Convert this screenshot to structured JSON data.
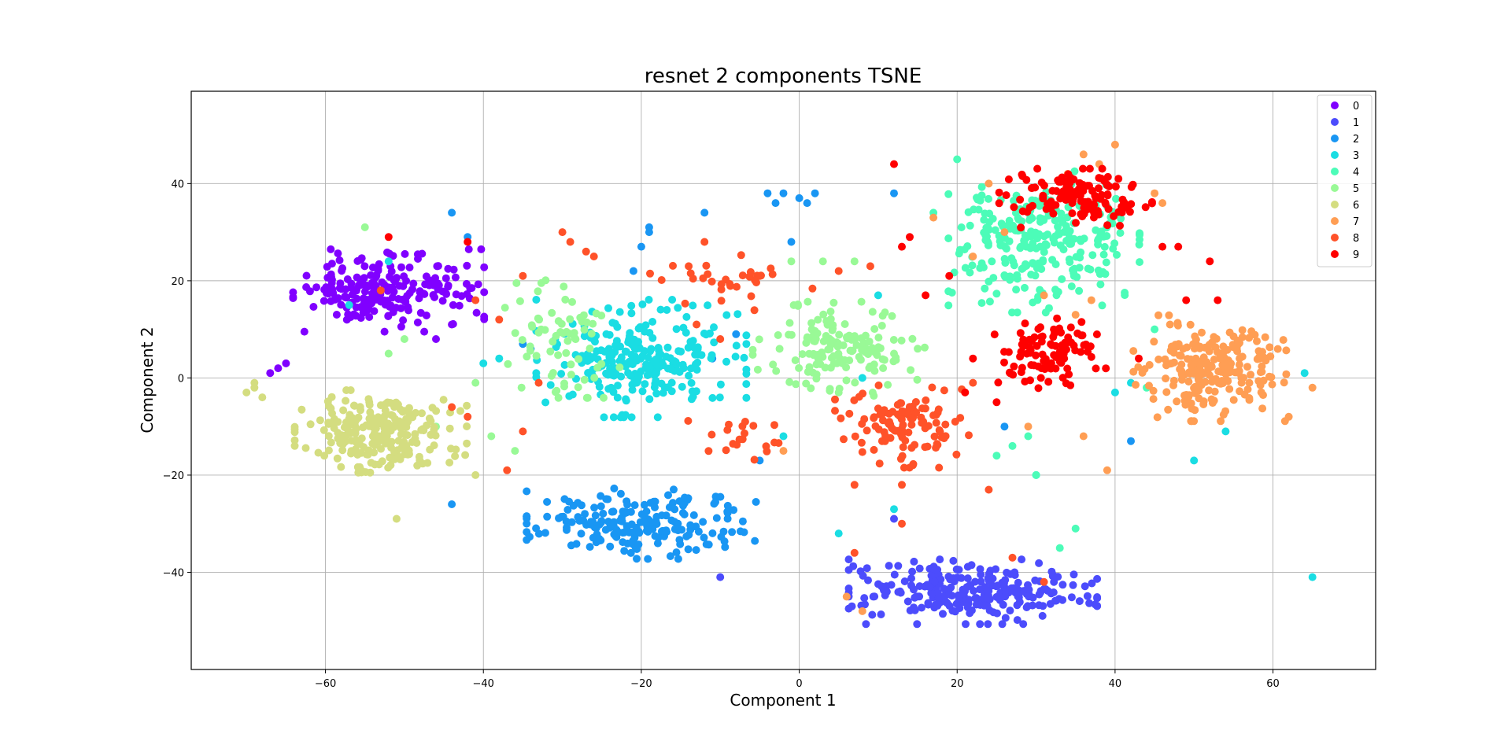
{
  "chart_data": {
    "type": "scatter",
    "title": "resnet 2 components TSNE",
    "xlabel": "Component 1",
    "ylabel": "Component 2",
    "xlim": [
      -77,
      73
    ],
    "ylim": [
      -60,
      59
    ],
    "xticks": [
      -60,
      -40,
      -20,
      0,
      20,
      40,
      60
    ],
    "yticks": [
      -40,
      -20,
      0,
      20,
      40
    ],
    "xtick_labels": [
      "−60",
      "−40",
      "−20",
      "0",
      "20",
      "40",
      "60"
    ],
    "ytick_labels": [
      "−40",
      "−20",
      "0",
      "20",
      "40"
    ],
    "grid": true,
    "legend_position": "top-right",
    "legend": [
      "0",
      "1",
      "2",
      "3",
      "4",
      "5",
      "6",
      "7",
      "8",
      "9"
    ],
    "colors": [
      "#8000ff",
      "#4c4cfc",
      "#1996f3",
      "#1adde3",
      "#4cfcb8",
      "#99f996",
      "#d4dd80",
      "#ff9e54",
      "#ff5229",
      "#ff0000"
    ],
    "series": [
      {
        "name": "0",
        "clusters": [
          {
            "center": [
              -52,
              18
            ],
            "spread": [
              10,
              7
            ],
            "count": 210
          }
        ],
        "points": [
          [
            -65,
            3
          ],
          [
            -66,
            2
          ],
          [
            -67,
            1
          ],
          [
            -44,
            11
          ],
          [
            -46,
            8
          ]
        ]
      },
      {
        "name": "1",
        "clusters": [
          {
            "center": [
              22,
              -44
            ],
            "spread": [
              13,
              5.5
            ],
            "count": 260
          }
        ],
        "points": [
          [
            -10,
            -41
          ],
          [
            12,
            -29
          ]
        ]
      },
      {
        "name": "2",
        "clusters": [
          {
            "center": [
              -20,
              -30
            ],
            "spread": [
              12,
              6
            ],
            "count": 200
          }
        ],
        "points": [
          [
            -4,
            38
          ],
          [
            -2,
            38
          ],
          [
            0,
            37
          ],
          [
            2,
            38
          ],
          [
            -3,
            36
          ],
          [
            1,
            36
          ],
          [
            -19,
            30
          ],
          [
            -12,
            34
          ],
          [
            -44,
            34
          ],
          [
            -42,
            29
          ],
          [
            -35,
            7
          ],
          [
            -34,
            6
          ],
          [
            -19,
            31
          ],
          [
            -20,
            27
          ],
          [
            -11,
            4
          ],
          [
            -8,
            9
          ],
          [
            -21,
            22
          ],
          [
            12,
            38
          ],
          [
            26,
            -10
          ],
          [
            42,
            -13
          ],
          [
            -44,
            -26
          ],
          [
            -5,
            -17
          ],
          [
            -1,
            28
          ]
        ]
      },
      {
        "name": "3",
        "clusters": [
          {
            "center": [
              -20,
              4
            ],
            "spread": [
              11,
              10
            ],
            "count": 260
          }
        ],
        "points": [
          [
            -40,
            3
          ],
          [
            -38,
            4
          ],
          [
            -52,
            24
          ],
          [
            -57,
            15
          ],
          [
            5,
            -32
          ],
          [
            30,
            -20
          ],
          [
            40,
            -3
          ],
          [
            42,
            -1
          ],
          [
            54,
            -11
          ],
          [
            64,
            1
          ],
          [
            65,
            -41
          ],
          [
            12,
            -27
          ],
          [
            -2,
            -12
          ],
          [
            8,
            0
          ],
          [
            10,
            17
          ],
          [
            50,
            -17
          ]
        ]
      },
      {
        "name": "4",
        "clusters": [
          {
            "center": [
              31,
              28
            ],
            "spread": [
              10,
              12
            ],
            "count": 260
          }
        ],
        "points": [
          [
            25,
            -16
          ],
          [
            27,
            -14
          ],
          [
            29,
            -12
          ],
          [
            30,
            -20
          ],
          [
            33,
            -35
          ],
          [
            35,
            -31
          ],
          [
            44,
            -2
          ],
          [
            17,
            34
          ],
          [
            20,
            45
          ],
          [
            45,
            10
          ]
        ]
      },
      {
        "name": "5",
        "clusters": [
          {
            "center": [
              5,
              6
            ],
            "spread": [
              9,
              8
            ],
            "count": 150
          },
          {
            "center": [
              -30,
              8
            ],
            "spread": [
              6,
              10
            ],
            "count": 70
          }
        ],
        "points": [
          [
            -55,
            31
          ],
          [
            -50,
            8
          ],
          [
            -52,
            5
          ],
          [
            -39,
            -12
          ],
          [
            -36,
            -15
          ],
          [
            -46,
            -10
          ],
          [
            -41,
            -1
          ],
          [
            5,
            -3
          ],
          [
            12,
            5
          ],
          [
            -1,
            24
          ],
          [
            7,
            24
          ],
          [
            3,
            24
          ]
        ]
      },
      {
        "name": "6",
        "clusters": [
          {
            "center": [
              -53,
              -11
            ],
            "spread": [
              9,
              7
            ],
            "count": 230
          }
        ],
        "points": [
          [
            -68,
            -4
          ],
          [
            -69,
            -2
          ],
          [
            -69,
            -1
          ],
          [
            -70,
            -3
          ],
          [
            -51,
            -29
          ],
          [
            -41,
            -20
          ]
        ]
      },
      {
        "name": "7",
        "clusters": [
          {
            "center": [
              52,
              2
            ],
            "spread": [
              8,
              9
            ],
            "count": 220
          }
        ],
        "points": [
          [
            24,
            40
          ],
          [
            26,
            30
          ],
          [
            22,
            25
          ],
          [
            17,
            33
          ],
          [
            34,
            42
          ],
          [
            36,
            46
          ],
          [
            38,
            44
          ],
          [
            40,
            48
          ],
          [
            31,
            17
          ],
          [
            35,
            13
          ],
          [
            37,
            16
          ],
          [
            39,
            -19
          ],
          [
            36,
            -12
          ],
          [
            29,
            -10
          ],
          [
            8,
            -48
          ],
          [
            6,
            -45
          ],
          [
            -2,
            -15
          ],
          [
            45,
            38
          ],
          [
            46,
            36
          ],
          [
            65,
            -2
          ],
          [
            62,
            -8
          ],
          [
            56,
            0
          ]
        ]
      },
      {
        "name": "8",
        "clusters": [
          {
            "center": [
              13,
              -10
            ],
            "spread": [
              7,
              7
            ],
            "count": 110
          },
          {
            "center": [
              -8,
              20
            ],
            "spread": [
              9,
              5
            ],
            "count": 30
          },
          {
            "center": [
              -7,
              -12
            ],
            "spread": [
              6,
              4
            ],
            "count": 20
          }
        ],
        "points": [
          [
            -30,
            30
          ],
          [
            -29,
            28
          ],
          [
            -27,
            26
          ],
          [
            -26,
            25
          ],
          [
            -35,
            21
          ],
          [
            -33,
            -1
          ],
          [
            -37,
            -19
          ],
          [
            -35,
            -11
          ],
          [
            -44,
            -6
          ],
          [
            -42,
            -8
          ],
          [
            -38,
            12
          ],
          [
            -53,
            18
          ],
          [
            -41,
            16
          ],
          [
            13,
            -30
          ],
          [
            7,
            -36
          ],
          [
            24,
            -23
          ],
          [
            31,
            -42
          ],
          [
            27,
            -37
          ],
          [
            13,
            -22
          ],
          [
            7,
            -22
          ],
          [
            22,
            -1
          ],
          [
            5,
            22
          ],
          [
            9,
            23
          ],
          [
            -13,
            11
          ],
          [
            -10,
            8
          ],
          [
            -12,
            28
          ],
          [
            -5,
            21
          ],
          [
            -14,
            23
          ]
        ]
      },
      {
        "name": "9",
        "clusters": [
          {
            "center": [
              35,
              37
            ],
            "spread": [
              8,
              5
            ],
            "count": 130
          },
          {
            "center": [
              32,
              5
            ],
            "spread": [
              6,
              6
            ],
            "count": 100
          }
        ],
        "points": [
          [
            -52,
            29
          ],
          [
            -42,
            28
          ],
          [
            12,
            44
          ],
          [
            14,
            29
          ],
          [
            13,
            27
          ],
          [
            16,
            17
          ],
          [
            19,
            21
          ],
          [
            48,
            27
          ],
          [
            46,
            27
          ],
          [
            52,
            24
          ],
          [
            49,
            16
          ],
          [
            53,
            16
          ],
          [
            22,
            4
          ],
          [
            25,
            -5
          ],
          [
            43,
            4
          ],
          [
            21,
            -3
          ]
        ]
      }
    ]
  }
}
